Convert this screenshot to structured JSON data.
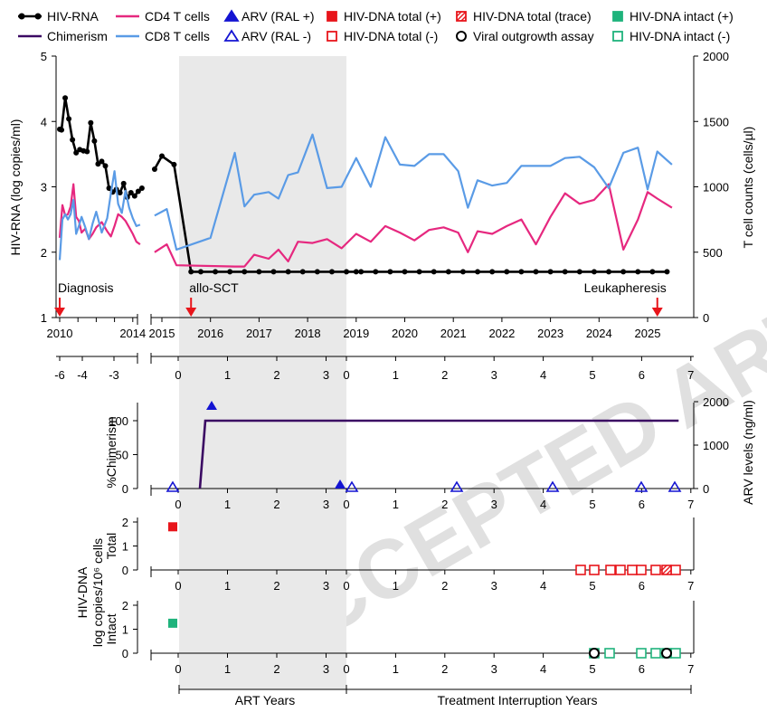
{
  "watermark": "ACCEPTED ARTICLE PREVIEW",
  "legend": [
    {
      "label": "HIV-RNA",
      "marker": "line-dot",
      "color": "#000000"
    },
    {
      "label": "Chimerism",
      "marker": "line",
      "color": "#3b0a63"
    },
    {
      "label": "CD4 T cells",
      "marker": "line",
      "color": "#e6287f"
    },
    {
      "label": "CD8 T cells",
      "marker": "line",
      "color": "#5a9be6"
    },
    {
      "label": "ARV (RAL +)",
      "marker": "triangle-filled",
      "color": "#1414d2"
    },
    {
      "label": "ARV (RAL -)",
      "marker": "triangle-open",
      "color": "#1414d2"
    },
    {
      "label": "HIV-DNA total (+)",
      "marker": "square-filled",
      "color": "#e8151b"
    },
    {
      "label": "HIV-DNA total (-)",
      "marker": "square-open",
      "color": "#e8151b"
    },
    {
      "label": "HIV-DNA total (trace)",
      "marker": "square-hatched",
      "color": "#e8151b"
    },
    {
      "label": "Viral outgrowth assay",
      "marker": "circle-open",
      "color": "#000000"
    },
    {
      "label": "HIV-DNA intact (+)",
      "marker": "square-filled",
      "color": "#1fb37c"
    },
    {
      "label": "HIV-DNA intact (-)",
      "marker": "square-open",
      "color": "#1fb37c"
    }
  ],
  "chart_data": [
    {
      "id": "main",
      "type": "line",
      "ylabel_left": "HIV-RNA (log copies/ml)",
      "ylim_left": [
        1,
        5
      ],
      "yticks_left": [
        "1",
        "2",
        "3",
        "4",
        "5"
      ],
      "ylabel_right": "T cell counts (cells/µl)",
      "ylim_right": [
        0,
        2000
      ],
      "yticks_right": [
        "0",
        "500",
        "1000",
        "1500",
        "2000"
      ],
      "years_left": [
        "2010",
        "2014"
      ],
      "years_right": [
        "2015",
        "2016",
        "2017",
        "2018",
        "2019",
        "2020",
        "2021",
        "2022",
        "2023",
        "2024",
        "2025"
      ],
      "rel_ticks_left": [
        "-6",
        "-4",
        "-3"
      ],
      "rel_ticks_right": [
        "0",
        "1",
        "2",
        "3",
        "0",
        "1",
        "2",
        "3",
        "4",
        "5",
        "6",
        "7"
      ],
      "events": [
        {
          "label": "Diagnosis",
          "panel": "left",
          "year": 2010.0
        },
        {
          "label": "allo-SCT",
          "panel": "right",
          "year": 2015.6
        },
        {
          "label": "Leukapheresis",
          "panel": "right",
          "year": 2025.2
        }
      ],
      "shaded_region_years": [
        2015.35,
        2018.7
      ],
      "series": [
        {
          "name": "HIV-RNA pre-2015",
          "axis": "left",
          "color": "#000000",
          "x": [
            2010.0,
            2010.1,
            2010.3,
            2010.5,
            2010.7,
            2010.9,
            2011.1,
            2011.3,
            2011.5,
            2011.7,
            2011.9,
            2012.1,
            2012.3,
            2012.5,
            2012.7,
            2012.9,
            2013.1,
            2013.3,
            2013.5,
            2013.7,
            2013.9,
            2014.1,
            2014.3,
            2014.5
          ],
          "y": [
            3.88,
            3.87,
            4.36,
            4.04,
            3.72,
            3.52,
            3.57,
            3.55,
            3.54,
            3.98,
            3.7,
            3.35,
            3.39,
            3.32,
            2.98,
            2.92,
            2.96,
            2.91,
            3.05,
            2.84,
            2.91,
            2.86,
            2.93,
            2.98
          ]
        },
        {
          "name": "HIV-RNA post-2015",
          "axis": "left",
          "color": "#000000",
          "x": [
            2014.85,
            2015.0,
            2015.25,
            2015.6,
            2015.8,
            2016.1,
            2016.4,
            2016.7,
            2017.0,
            2017.3,
            2017.6,
            2017.9,
            2018.2,
            2018.5,
            2018.8,
            2019.0,
            2019.1,
            2019.4,
            2019.7,
            2020.0,
            2020.3,
            2020.6,
            2020.9,
            2021.2,
            2021.5,
            2021.8,
            2022.1,
            2022.4,
            2022.7,
            2023.0,
            2023.3,
            2023.6,
            2023.9,
            2024.2,
            2024.5,
            2024.8,
            2025.1,
            2025.4
          ],
          "y": [
            3.27,
            3.47,
            3.34,
            1.7,
            1.7,
            1.7,
            1.7,
            1.7,
            1.7,
            1.7,
            1.7,
            1.7,
            1.7,
            1.7,
            1.7,
            1.7,
            1.7,
            1.7,
            1.7,
            1.7,
            1.7,
            1.7,
            1.7,
            1.7,
            1.7,
            1.7,
            1.7,
            1.7,
            1.7,
            1.7,
            1.7,
            1.7,
            1.7,
            1.7,
            1.7,
            1.7,
            1.7,
            1.7
          ]
        },
        {
          "name": "CD4 T cells pre-2015",
          "axis": "right",
          "color": "#e6287f",
          "x": [
            2010.0,
            2010.15,
            2010.3,
            2010.45,
            2010.6,
            2010.75,
            2010.9,
            2011.05,
            2011.2,
            2011.4,
            2011.6,
            2011.8,
            2012.0,
            2012.3,
            2012.6,
            2012.8,
            2013.0,
            2013.2,
            2013.4,
            2013.6,
            2013.8,
            2014.0,
            2014.2,
            2014.4
          ],
          "y": [
            610,
            860,
            780,
            790,
            850,
            1020,
            770,
            740,
            650,
            680,
            600,
            640,
            690,
            730,
            660,
            620,
            700,
            790,
            770,
            740,
            690,
            640,
            580,
            560
          ]
        },
        {
          "name": "CD4 T cells post-2015",
          "axis": "right",
          "color": "#e6287f",
          "x": [
            2014.85,
            2015.1,
            2015.3,
            2016.5,
            2016.7,
            2016.9,
            2017.2,
            2017.4,
            2017.6,
            2017.8,
            2018.1,
            2018.4,
            2018.7,
            2019.0,
            2019.3,
            2019.6,
            2019.9,
            2020.2,
            2020.5,
            2020.8,
            2021.1,
            2021.3,
            2021.5,
            2021.8,
            2022.1,
            2022.4,
            2022.7,
            2023.0,
            2023.3,
            2023.6,
            2023.9,
            2024.2,
            2024.5,
            2024.8,
            2025.0,
            2025.2,
            2025.5
          ],
          "y": [
            500,
            560,
            400,
            390,
            390,
            480,
            450,
            520,
            430,
            580,
            570,
            600,
            530,
            640,
            580,
            700,
            650,
            590,
            670,
            690,
            650,
            500,
            660,
            640,
            700,
            750,
            560,
            770,
            950,
            870,
            900,
            1020,
            520,
            750,
            960,
            910,
            840
          ]
        },
        {
          "name": "CD8 T cells pre-2015",
          "axis": "right",
          "color": "#5a9be6",
          "x": [
            2010.0,
            2010.15,
            2010.3,
            2010.45,
            2010.6,
            2010.75,
            2010.9,
            2011.05,
            2011.2,
            2011.4,
            2011.6,
            2011.8,
            2012.0,
            2012.3,
            2012.6,
            2012.8,
            2013.0,
            2013.2,
            2013.4,
            2013.6,
            2013.8,
            2014.0,
            2014.2,
            2014.4
          ],
          "y": [
            440,
            750,
            790,
            750,
            790,
            900,
            640,
            700,
            770,
            690,
            600,
            720,
            810,
            650,
            760,
            950,
            1120,
            870,
            800,
            970,
            840,
            760,
            700,
            710
          ]
        },
        {
          "name": "CD8 T cells post-2015",
          "axis": "right",
          "color": "#5a9be6",
          "x": [
            2014.85,
            2015.1,
            2015.3,
            2016.0,
            2016.5,
            2016.7,
            2016.9,
            2017.2,
            2017.4,
            2017.6,
            2017.8,
            2018.1,
            2018.4,
            2018.7,
            2019.0,
            2019.3,
            2019.6,
            2019.9,
            2020.2,
            2020.5,
            2020.8,
            2021.1,
            2021.3,
            2021.5,
            2021.8,
            2022.1,
            2022.4,
            2022.7,
            2023.0,
            2023.3,
            2023.6,
            2023.9,
            2024.2,
            2024.5,
            2024.8,
            2025.0,
            2025.2,
            2025.5
          ],
          "y": [
            780,
            830,
            520,
            610,
            1260,
            850,
            940,
            960,
            910,
            1090,
            1110,
            1400,
            990,
            1000,
            1220,
            1000,
            1380,
            1170,
            1160,
            1250,
            1250,
            1120,
            840,
            1050,
            1010,
            1030,
            1160,
            1160,
            1160,
            1220,
            1230,
            1150,
            990,
            1260,
            1300,
            980,
            1270,
            1170
          ]
        }
      ]
    },
    {
      "id": "chimerism",
      "type": "line",
      "ylabel_left": "%Chimerism",
      "ylim_left": [
        0,
        120
      ],
      "yticks_left": [
        "0",
        "50",
        "100"
      ],
      "ylabel_right": "ARV levels (ng/ml)",
      "ylim_right": [
        0,
        2000
      ],
      "yticks_right": [
        "0",
        "1000",
        "2000"
      ],
      "xticks": [
        "0",
        "1",
        "2",
        "3",
        "0",
        "1",
        "2",
        "3",
        "4",
        "5",
        "6",
        "7"
      ],
      "series": [
        {
          "name": "Chimerism",
          "color": "#3b0a63",
          "x": [
            0.45,
            0.5,
            6.7
          ],
          "y": [
            0,
            100,
            100
          ]
        }
      ],
      "arv_ral_plus": {
        "x": [
          0.7,
          3.3
        ],
        "y": [
          1900,
          100
        ]
      },
      "arv_ral_minus": {
        "x": [
          -0.15,
          3.55,
          5.75,
          7.3,
          9.2,
          10.2
        ],
        "y": [
          0,
          0,
          0,
          0,
          0,
          0
        ]
      }
    },
    {
      "id": "hivdna",
      "type": "scatter",
      "shared_ylabel": "HIV-DNA\nlog copies/10⁶ cells",
      "total": {
        "ylabel": "Total",
        "ylim": [
          0,
          2
        ],
        "yticks": [
          "0",
          "1",
          "2"
        ],
        "positive": {
          "x": [
            -0.1
          ],
          "y": [
            1.8
          ]
        },
        "negative": {
          "x": [
            8.4,
            8.7,
            9.0,
            9.2,
            9.4,
            9.75,
            10.0,
            10.35,
            10.65
          ],
          "y": [
            0,
            0,
            0,
            0,
            0,
            0,
            0,
            0,
            0
          ]
        },
        "trace": {
          "x": [
            10.5
          ],
          "y": [
            0
          ]
        }
      },
      "intact": {
        "ylabel": "Intact",
        "ylim": [
          0,
          2
        ],
        "yticks": [
          "0",
          "1",
          "2"
        ],
        "positive": {
          "x": [
            -0.1
          ],
          "y": [
            1.25
          ]
        },
        "negative": {
          "x": [
            8.7,
            9.0,
            9.75,
            10.0,
            10.35,
            10.65
          ],
          "y": [
            0,
            0,
            0,
            0,
            0,
            0
          ]
        },
        "viral_outgrowth": {
          "x": [
            8.7,
            10.45
          ],
          "y": [
            0,
            0
          ]
        }
      },
      "xlabel_art": "ART Years",
      "xlabel_ti": "Treatment Interruption Years"
    }
  ]
}
